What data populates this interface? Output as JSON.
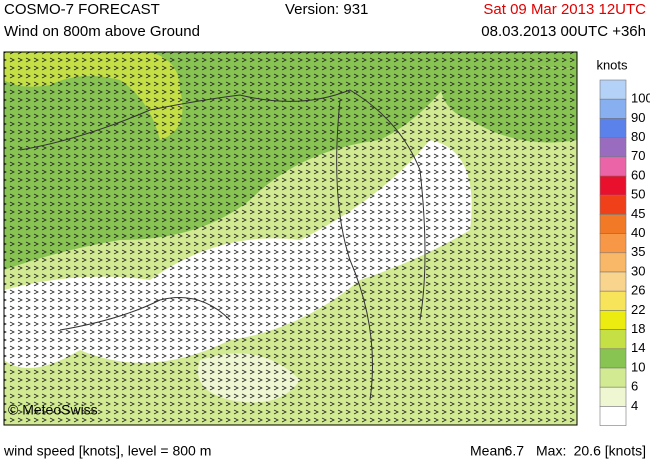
{
  "header": {
    "title": "COSMO-7 FORECAST",
    "subtitle": "Wind on 800m above Ground",
    "version": "Version: 931",
    "valid_time": "Sat 09 Mar 2013 12UTC",
    "run_time": "08.03.2013 00UTC +36h"
  },
  "map": {
    "credit": "© MeteoSwiss"
  },
  "legend": {
    "unit": "knots",
    "levels": [
      {
        "value": 100,
        "color": "#b4d2f8"
      },
      {
        "value": 90,
        "color": "#88b0f0"
      },
      {
        "value": 80,
        "color": "#5a82ea"
      },
      {
        "value": 70,
        "color": "#9a6cc0"
      },
      {
        "value": 60,
        "color": "#ec64a8"
      },
      {
        "value": 50,
        "color": "#e8102c"
      },
      {
        "value": 45,
        "color": "#f0401a"
      },
      {
        "value": 40,
        "color": "#f27a26"
      },
      {
        "value": 35,
        "color": "#f89846"
      },
      {
        "value": 30,
        "color": "#f8b868"
      },
      {
        "value": 26,
        "color": "#f8d48c"
      },
      {
        "value": 22,
        "color": "#f8e45a"
      },
      {
        "value": 18,
        "color": "#ecec10"
      },
      {
        "value": 14,
        "color": "#c4e044"
      },
      {
        "value": 10,
        "color": "#88c452"
      },
      {
        "value": 6,
        "color": "#d2ea92"
      },
      {
        "value": 4,
        "color": "#eef6d2"
      }
    ]
  },
  "footer": {
    "description": "wind speed [knots], level = 800 m",
    "mean_label": "Mean:",
    "mean_value": "6.7",
    "max_label": "Max:",
    "max_value": "20.6 [knots]"
  }
}
